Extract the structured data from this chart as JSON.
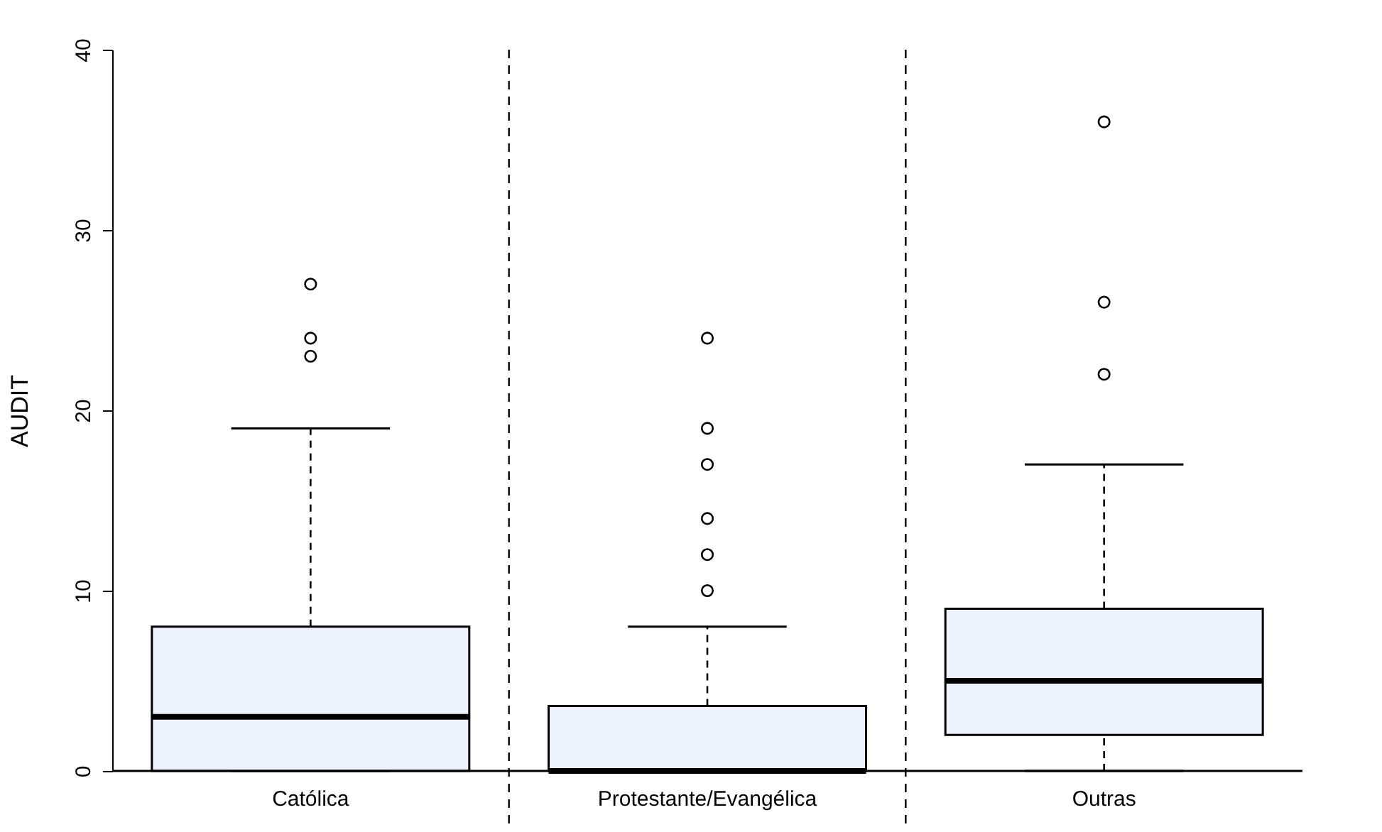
{
  "chart_data": {
    "type": "box",
    "ylabel": "AUDIT",
    "categories": [
      "Católica",
      "Protestante/Evangélica",
      "Outras"
    ],
    "boxes": [
      {
        "low": 0,
        "q1": 0,
        "median": 3,
        "q3": 8,
        "high": 19,
        "outliers": [
          23,
          24,
          27
        ]
      },
      {
        "low": 0,
        "q1": 0,
        "median": 0,
        "q3": 3.6,
        "high": 8,
        "outliers": [
          10,
          12,
          14,
          17,
          19,
          24
        ]
      },
      {
        "low": 0,
        "q1": 2,
        "median": 5,
        "q3": 9,
        "high": 17,
        "outliers": [
          22,
          26,
          36
        ]
      }
    ],
    "color": "#eef2fd",
    "ylim": [
      0,
      40
    ],
    "yticks": [
      0,
      10,
      20,
      30,
      40
    ],
    "grid": false
  }
}
